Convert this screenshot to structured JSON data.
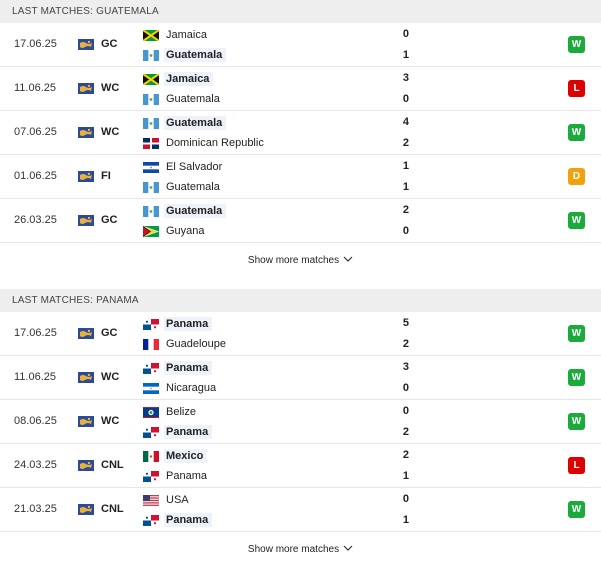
{
  "colors": {
    "win": "#1aab3c",
    "loss": "#dc0000",
    "draw": "#f1a10b"
  },
  "sections": [
    {
      "title": "LAST MATCHES: GUATEMALA",
      "show_more": "Show more matches",
      "matches": [
        {
          "date": "17.06.25",
          "comp": "GC",
          "home": {
            "name": "Jamaica",
            "flag": "jamaica",
            "highlight": false,
            "score": "0"
          },
          "away": {
            "name": "Guatemala",
            "flag": "guatemala",
            "highlight": true,
            "score": "1"
          },
          "result": "W"
        },
        {
          "date": "11.06.25",
          "comp": "WC",
          "home": {
            "name": "Jamaica",
            "flag": "jamaica",
            "highlight": true,
            "score": "3"
          },
          "away": {
            "name": "Guatemala",
            "flag": "guatemala",
            "highlight": false,
            "score": "0"
          },
          "result": "L"
        },
        {
          "date": "07.06.25",
          "comp": "WC",
          "home": {
            "name": "Guatemala",
            "flag": "guatemala",
            "highlight": true,
            "score": "4"
          },
          "away": {
            "name": "Dominican Republic",
            "flag": "dominican-republic",
            "highlight": false,
            "score": "2"
          },
          "result": "W"
        },
        {
          "date": "01.06.25",
          "comp": "FI",
          "home": {
            "name": "El Salvador",
            "flag": "el-salvador",
            "highlight": false,
            "score": "1"
          },
          "away": {
            "name": "Guatemala",
            "flag": "guatemala",
            "highlight": false,
            "score": "1"
          },
          "result": "D"
        },
        {
          "date": "26.03.25",
          "comp": "GC",
          "home": {
            "name": "Guatemala",
            "flag": "guatemala",
            "highlight": true,
            "score": "2"
          },
          "away": {
            "name": "Guyana",
            "flag": "guyana",
            "highlight": false,
            "score": "0"
          },
          "result": "W"
        }
      ]
    },
    {
      "title": "LAST MATCHES: PANAMA",
      "show_more": "Show more matches",
      "matches": [
        {
          "date": "17.06.25",
          "comp": "GC",
          "home": {
            "name": "Panama",
            "flag": "panama",
            "highlight": true,
            "score": "5"
          },
          "away": {
            "name": "Guadeloupe",
            "flag": "guadeloupe",
            "highlight": false,
            "score": "2"
          },
          "result": "W"
        },
        {
          "date": "11.06.25",
          "comp": "WC",
          "home": {
            "name": "Panama",
            "flag": "panama",
            "highlight": true,
            "score": "3"
          },
          "away": {
            "name": "Nicaragua",
            "flag": "nicaragua",
            "highlight": false,
            "score": "0"
          },
          "result": "W"
        },
        {
          "date": "08.06.25",
          "comp": "WC",
          "home": {
            "name": "Belize",
            "flag": "belize",
            "highlight": false,
            "score": "0"
          },
          "away": {
            "name": "Panama",
            "flag": "panama",
            "highlight": true,
            "score": "2"
          },
          "result": "W"
        },
        {
          "date": "24.03.25",
          "comp": "CNL",
          "home": {
            "name": "Mexico",
            "flag": "mexico",
            "highlight": true,
            "score": "2"
          },
          "away": {
            "name": "Panama",
            "flag": "panama",
            "highlight": false,
            "score": "1"
          },
          "result": "L"
        },
        {
          "date": "21.03.25",
          "comp": "CNL",
          "home": {
            "name": "USA",
            "flag": "usa",
            "highlight": false,
            "score": "0"
          },
          "away": {
            "name": "Panama",
            "flag": "panama",
            "highlight": true,
            "score": "1"
          },
          "result": "W"
        }
      ]
    }
  ]
}
